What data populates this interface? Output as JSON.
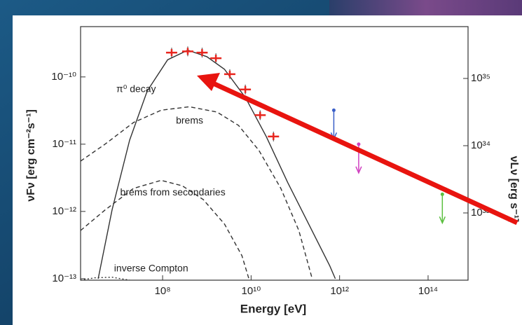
{
  "chart_data": {
    "type": "sed",
    "xlabel": "Energy [eV]",
    "ylabel": "νFν [erg cm⁻²s⁻¹]",
    "y2label": "νLν [erg s⁻¹]",
    "xlim": [
      1400000,
      800000000000000
    ],
    "ylim": [
      9.5e-14,
      5.6e-10
    ],
    "y2lim": [
      1e+32,
      5.9e+35
    ],
    "log": true,
    "xticks": [
      {
        "value": 100000000,
        "label": "10⁸"
      },
      {
        "value": 10000000000,
        "label": "10¹⁰"
      },
      {
        "value": 1000000000000,
        "label": "10¹²"
      },
      {
        "value": 100000000000000,
        "label": "10¹⁴"
      }
    ],
    "yticks": [
      {
        "value": 1e-13,
        "label": "10⁻¹³"
      },
      {
        "value": 1e-12,
        "label": "10⁻¹²"
      },
      {
        "value": 1e-11,
        "label": "10⁻¹¹"
      },
      {
        "value": 1e-10,
        "label": "10⁻¹⁰"
      }
    ],
    "y2ticks": [
      {
        "value": 1e+33,
        "label": "10³³"
      },
      {
        "value": 1e+34,
        "label": "10³⁴"
      },
      {
        "value": 1e+35,
        "label": "10³⁵"
      }
    ],
    "annotations": [
      {
        "text": "π⁰ decay",
        "x": 9000000,
        "y": 6.5e-11
      },
      {
        "text": "brems",
        "x": 200000000,
        "y": 2.2e-11
      },
      {
        "text": "brems from secondaries",
        "x": 11000000,
        "y": 1.9e-12
      },
      {
        "text": "inverse Compton",
        "x": 8000000,
        "y": 1.4e-13
      }
    ],
    "series": [
      {
        "style": "solid",
        "color": "#333333",
        "x": [
          3500000,
          7200000,
          18000000,
          45000000,
          130000000,
          370000000,
          1000000000,
          2500000000,
          7500000000,
          22000000000,
          67000000000,
          200000000000,
          600000000000,
          800000000000
        ],
        "values": [
          1e-13,
          1.05e-12,
          1.15e-11,
          6.2e-11,
          1.8e-10,
          2.5e-10,
          2e-10,
          1.3e-10,
          4.9e-11,
          1.3e-11,
          2.7e-12,
          6.5e-13,
          1.55e-13,
          1e-13
        ]
      },
      {
        "style": "dashed",
        "color": "#333333",
        "x": [
          1400000,
          5000000,
          22000000,
          93000000,
          400000000,
          1700000000,
          5200000000,
          15000000000,
          47000000000,
          120000000000,
          240000000000
        ],
        "values": [
          5.6e-12,
          1e-11,
          2.1e-11,
          3.2e-11,
          3.6e-11,
          3e-11,
          1.9e-11,
          8.1e-12,
          2.2e-12,
          5.2e-13,
          1e-13
        ]
      },
      {
        "style": "dashed",
        "color": "#333333",
        "x": [
          1400000,
          5000000,
          22000000,
          93000000,
          280000000,
          830000000,
          2500000000,
          6200000000,
          8900000000
        ],
        "values": [
          5.2e-13,
          1.05e-12,
          2.2e-12,
          2.9e-12,
          2.4e-12,
          1.5e-12,
          6.5e-13,
          2.2e-13,
          1e-13
        ]
      },
      {
        "style": "dotted",
        "color": "#333333",
        "x": [
          1400000,
          2900000,
          7200000,
          18000000
        ],
        "values": [
          9.5e-14,
          1.03e-13,
          1.05e-13,
          9.5e-14
        ]
      },
      {
        "style": "points",
        "color": "#e8261f",
        "x": [
          160000000,
          370000000,
          780000000,
          1600000000,
          3300000000,
          7400000000,
          16000000000,
          32000000000
        ],
        "values": [
          2.3e-10,
          2.4e-10,
          2.3e-10,
          1.9e-10,
          1.1e-10,
          6.5e-11,
          2.7e-11,
          1.3e-11
        ]
      },
      {
        "style": "upper-limit",
        "color": "#3a5fc8",
        "x": [
          740000000000
        ],
        "values": [
          3.2e-11
        ]
      },
      {
        "style": "upper-limit",
        "color": "#d040c0",
        "x": [
          2700000000000
        ],
        "values": [
          1e-11
        ]
      },
      {
        "style": "upper-limit",
        "color": "#5cbf40",
        "x": [
          210000000000000
        ],
        "values": [
          1.8e-12
        ]
      }
    ]
  }
}
